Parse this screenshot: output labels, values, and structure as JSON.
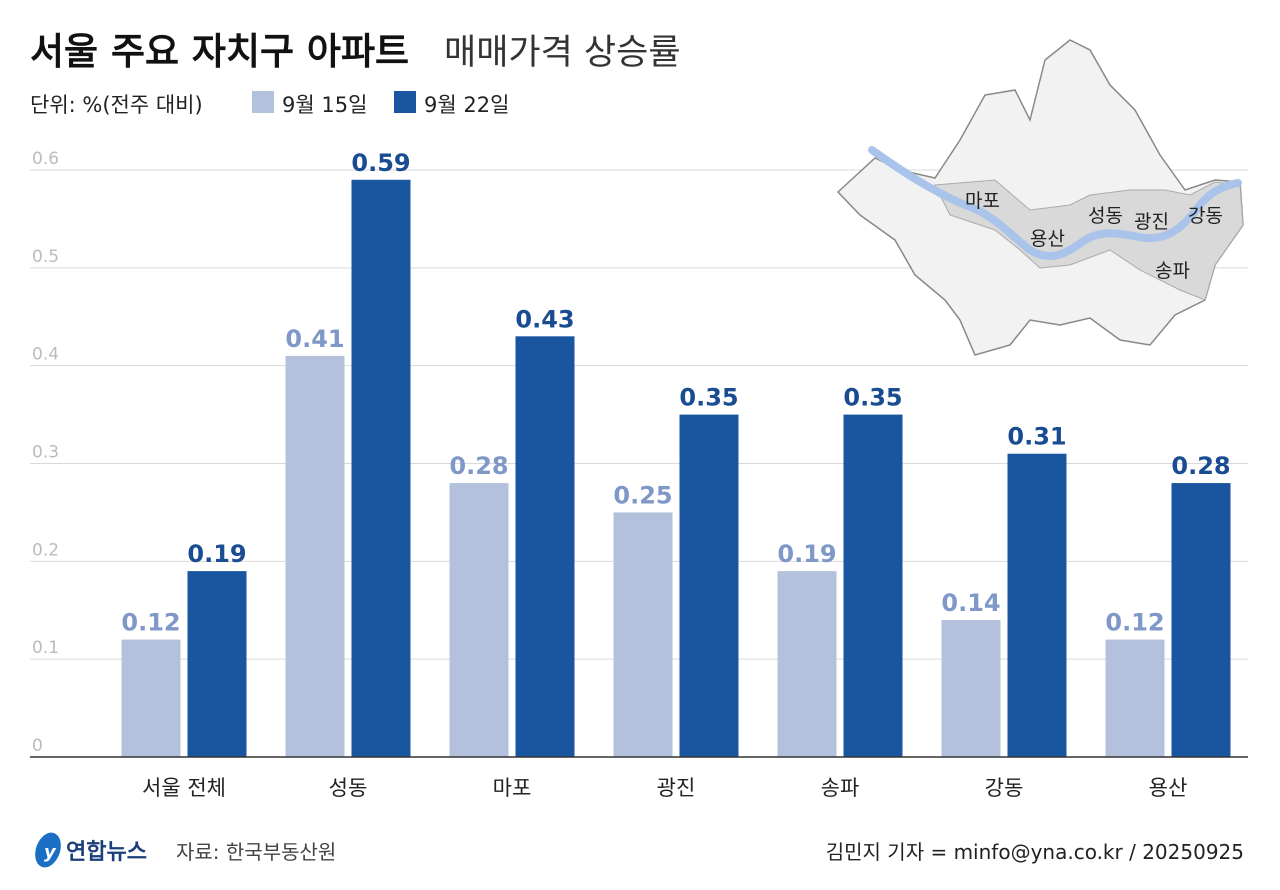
{
  "title_bold": "서울 주요 자치구 아파트",
  "title_light": "매매가격 상승률",
  "unit": "단위: %(전주 대비)",
  "colors": {
    "series1": "#b3c1dc",
    "series2": "#1a56a0",
    "label1": "#7f98c8",
    "label2": "#1a4c91",
    "grid": "#d9d9d9",
    "map_fill": "#f2f2f2",
    "map_highlight": "#d9d9d9",
    "river": "#a9c3ea"
  },
  "chart_data": {
    "type": "bar",
    "title": "서울 주요 자치구 아파트 매매가격 상승률",
    "ylabel": "단위: %(전주 대비)",
    "categories": [
      "서울 전체",
      "성동",
      "마포",
      "광진",
      "송파",
      "강동",
      "용산"
    ],
    "series": [
      {
        "name": "9월 15일",
        "values": [
          0.12,
          0.41,
          0.28,
          0.25,
          0.19,
          0.14,
          0.12
        ]
      },
      {
        "name": "9월 22일",
        "values": [
          0.19,
          0.59,
          0.43,
          0.35,
          0.35,
          0.31,
          0.28
        ]
      }
    ],
    "value_labels": [
      [
        "0.12",
        "0.41",
        "0.28",
        "0.25",
        "0.19",
        "0.14",
        "0.12"
      ],
      [
        "0.19",
        "0.59",
        "0.43",
        "0.35",
        "0.35",
        "0.31",
        "0.28"
      ]
    ],
    "ylim": [
      0,
      0.6
    ],
    "yticks": [
      "0",
      "0.1",
      "0.2",
      "0.3",
      "0.4",
      "0.5",
      "0.6"
    ],
    "grid": true,
    "legend_position": "top-left"
  },
  "map": {
    "labels": [
      "마포",
      "용산",
      "성동",
      "광진",
      "강동",
      "송파"
    ]
  },
  "footer": {
    "logo": "연합뉴스",
    "source": "자료: 한국부동산원",
    "credit": "김민지 기자 = minfo@yna.co.kr / 20250925"
  }
}
